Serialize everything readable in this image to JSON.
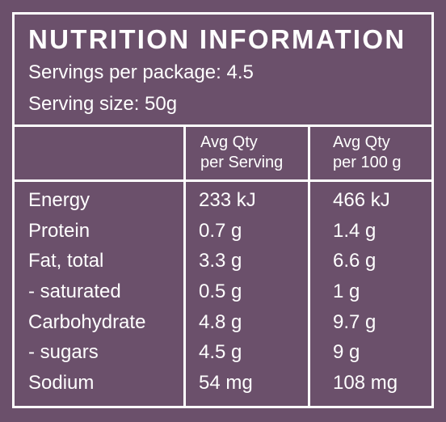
{
  "panel": {
    "title": "NUTRITION INFORMATION",
    "servings_per_package": "Servings per package: 4.5",
    "serving_size": "Serving size: 50g"
  },
  "columns": {
    "per_serving": [
      "Avg Qty",
      "per Serving"
    ],
    "per_100g": [
      "Avg Qty",
      "per 100 g"
    ]
  },
  "rows": [
    {
      "nutrient": "Energy",
      "per_serving": "233 kJ",
      "per_100g": "466 kJ"
    },
    {
      "nutrient": "Protein",
      "per_serving": "0.7 g",
      "per_100g": "1.4 g"
    },
    {
      "nutrient": "Fat, total",
      "per_serving": "3.3 g",
      "per_100g": "6.6 g"
    },
    {
      "nutrient": "- saturated",
      "per_serving": "0.5 g",
      "per_100g": "1 g"
    },
    {
      "nutrient": "Carbohydrate",
      "per_serving": "4.8 g",
      "per_100g": "9.7 g"
    },
    {
      "nutrient": "- sugars",
      "per_serving": "4.5 g",
      "per_100g": "9 g"
    },
    {
      "nutrient": "Sodium",
      "per_serving": "54 mg",
      "per_100g": "108 mg"
    }
  ],
  "colors": {
    "background": "#6b506b",
    "text": "#ffffff",
    "rules": "#ffffff"
  }
}
